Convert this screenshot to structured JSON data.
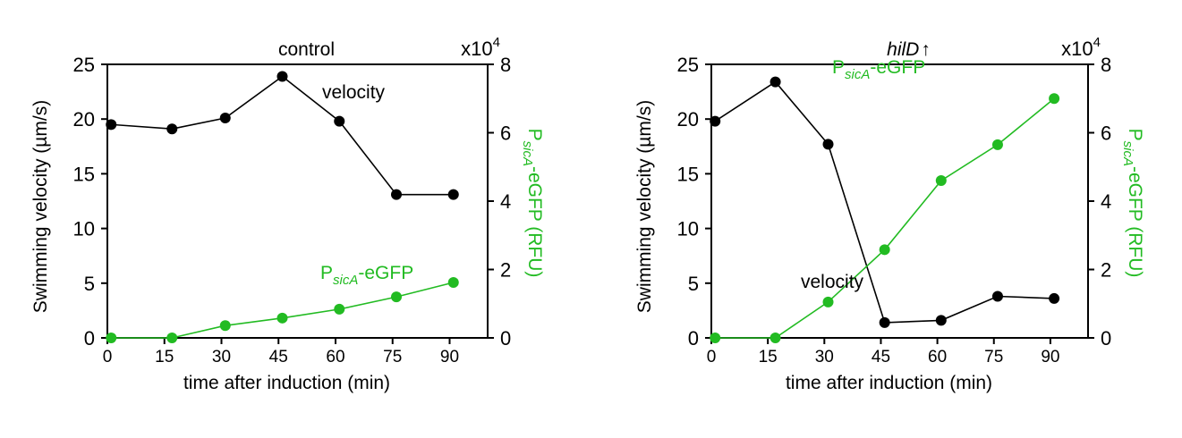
{
  "colors": {
    "velocity": "#000000",
    "gfp": "#22bb22"
  },
  "chart_data": [
    {
      "type": "line",
      "title": "control",
      "title_arrow": "",
      "xlabel": "time after induction (min)",
      "ylabel": "Swimming velocity (µm/s)",
      "y2label_main": "P",
      "y2label_sub": "sicA",
      "y2label_suffix": "-eGFP (RFU)",
      "y2_multiplier": "x10",
      "y2_multiplier_exp": "4",
      "xlim": [
        0,
        100
      ],
      "ylim": [
        0,
        25
      ],
      "y2lim": [
        0,
        8
      ],
      "x_ticks": [
        "0",
        "15",
        "30",
        "45",
        "60",
        "75",
        "90"
      ],
      "y_ticks": [
        "0",
        "5",
        "10",
        "15",
        "20",
        "25"
      ],
      "y2_ticks": [
        "0",
        "2",
        "4",
        "6",
        "8"
      ],
      "series": [
        {
          "name": "velocity",
          "axis": "left",
          "x": [
            1,
            17,
            31,
            46,
            61,
            76,
            91
          ],
          "y": [
            19.5,
            19.1,
            20.1,
            23.9,
            19.8,
            13.1,
            13.1
          ]
        },
        {
          "name_main": "P",
          "name_sub": "sicA",
          "name_suffix": "-eGFP",
          "axis": "right",
          "x": [
            1,
            17,
            31,
            46,
            61,
            76,
            91
          ],
          "y": [
            0,
            0,
            0.36,
            0.58,
            0.84,
            1.2,
            1.62
          ]
        }
      ]
    },
    {
      "type": "line",
      "title": "hilD",
      "title_arrow": "↑",
      "xlabel": "time after induction (min)",
      "ylabel": "Swimming velocity (µm/s)",
      "y2label_main": "P",
      "y2label_sub": "sicA",
      "y2label_suffix": "-eGFP (RFU)",
      "y2_multiplier": "x10",
      "y2_multiplier_exp": "4",
      "xlim": [
        0,
        100
      ],
      "ylim": [
        0,
        25
      ],
      "y2lim": [
        0,
        8
      ],
      "x_ticks": [
        "0",
        "15",
        "30",
        "45",
        "60",
        "75",
        "90"
      ],
      "y_ticks": [
        "0",
        "5",
        "10",
        "15",
        "20",
        "25"
      ],
      "y2_ticks": [
        "0",
        "2",
        "4",
        "6",
        "8"
      ],
      "series": [
        {
          "name": "velocity",
          "axis": "left",
          "x": [
            1,
            17,
            31,
            46,
            61,
            76,
            91
          ],
          "y": [
            19.8,
            23.4,
            17.7,
            1.4,
            1.6,
            3.8,
            3.6
          ]
        },
        {
          "name_main": "P",
          "name_sub": "sicA",
          "name_suffix": "-eGFP",
          "axis": "right",
          "x": [
            1,
            17,
            31,
            46,
            61,
            76,
            91
          ],
          "y": [
            0,
            0,
            1.05,
            2.58,
            4.6,
            5.65,
            7.0
          ]
        }
      ]
    }
  ]
}
